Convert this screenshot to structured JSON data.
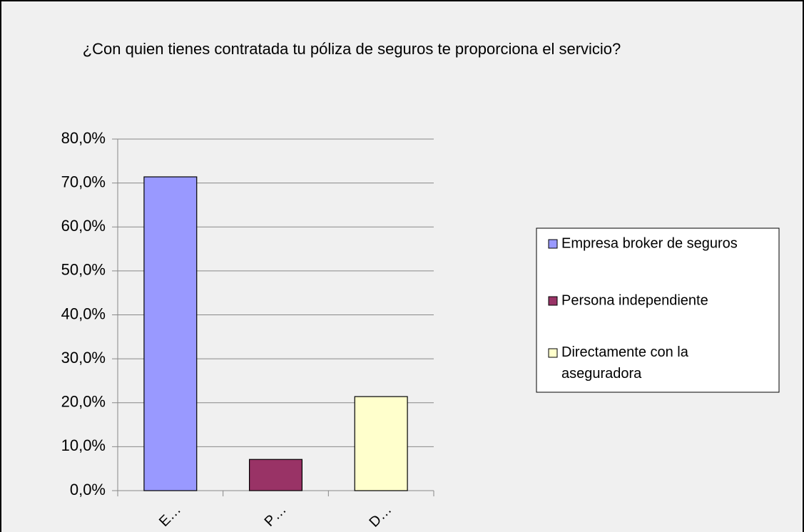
{
  "chart_data": {
    "type": "bar",
    "title": "¿Con quien tienes contratada tu póliza de seguros te proporciona el servicio?",
    "categories": [
      "E…",
      "P…",
      "D…"
    ],
    "values": [
      71.4,
      7.1,
      21.4
    ],
    "colors": [
      "#9999ff",
      "#993366",
      "#ffffcc"
    ],
    "legend": [
      "Empresa broker de seguros",
      "Persona independiente",
      "Directamente con la aseguradora"
    ],
    "ylim": [
      0,
      80
    ],
    "yticks": [
      {
        "value": 0,
        "label": "0,0%"
      },
      {
        "value": 10,
        "label": "10,0%"
      },
      {
        "value": 20,
        "label": "20,0%"
      },
      {
        "value": 30,
        "label": "30,0%"
      },
      {
        "value": 40,
        "label": "40,0%"
      },
      {
        "value": 50,
        "label": "50,0%"
      },
      {
        "value": 60,
        "label": "60,0%"
      },
      {
        "value": 70,
        "label": "70,0%"
      },
      {
        "value": 80,
        "label": "80,0%"
      }
    ],
    "grid": true
  }
}
